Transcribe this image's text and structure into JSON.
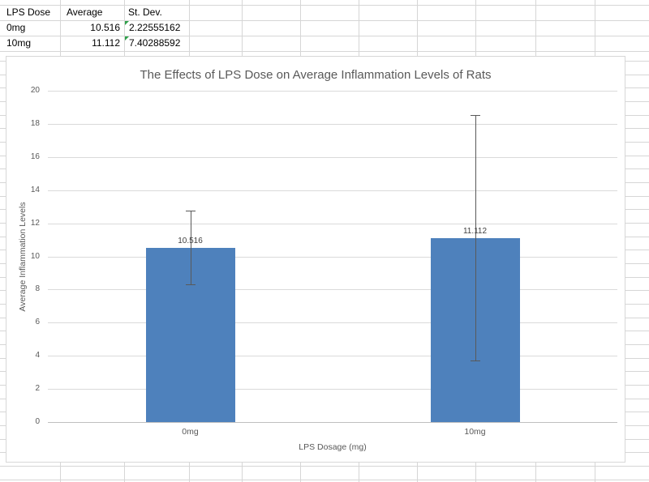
{
  "table": {
    "headers": {
      "dose": "LPS Dose",
      "average": "Average",
      "stdev": "St. Dev."
    },
    "rows": [
      {
        "dose": "0mg",
        "average": "10.516",
        "stdev": "2.22555162"
      },
      {
        "dose": "10mg",
        "average": "11.112",
        "stdev": "7.40288592"
      }
    ]
  },
  "chart_data": {
    "type": "bar",
    "title": "The Effects of LPS Dose on Average Inflammation Levels of Rats",
    "categories": [
      "0mg",
      "10mg"
    ],
    "values": [
      10.516,
      11.112
    ],
    "error_bars": [
      2.22555162,
      7.40288592
    ],
    "data_labels": [
      "10.516",
      "11.112"
    ],
    "xlabel": "LPS Dosage (mg)",
    "ylabel": "Average Inflammation Levels",
    "ylim": [
      0,
      20
    ],
    "ytick_step": 2,
    "grid": true,
    "legend": "none",
    "bar_color": "#4e81bc"
  },
  "colors": {
    "bar": "#4e81bc",
    "chart_gridline": "#dadada",
    "axis_line": "#bfbfbf",
    "sheet_gridline": "#d6d6d6",
    "label_gray": "#595959",
    "data_label_gray": "#404040",
    "cell_text": "#000000",
    "error_indicator_green": "#2fa04a",
    "error_bar": "#595959"
  }
}
